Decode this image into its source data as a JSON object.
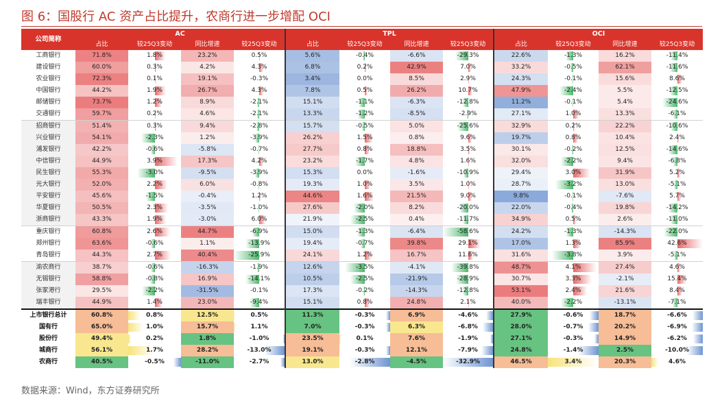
{
  "title": "图 6：国股行 AC 资产占比提升，农商行进一步增配 OCI",
  "source": "数据来源：Wind，东方证券研究所",
  "header": {
    "bank_col": "公司简称",
    "groups": [
      "AC",
      "TPL",
      "OCI"
    ],
    "subcols": [
      "占比",
      "较25Q3变动",
      "同比增速",
      "较25Q3变动"
    ]
  },
  "colors": {
    "red": "#e8696a",
    "blue": "#6f95d1",
    "green": "#4cb86b",
    "yellow": "#f7e37a",
    "orange": "#f4b183",
    "accent": "#d9342b"
  },
  "banks": [
    {
      "name": "工商银行",
      "v": [
        "71.8%",
        "1.8%",
        "23.2%",
        "0.5%",
        "5.6%",
        "-0.4%",
        "-6.6%",
        "-29.3%",
        "22.6%",
        "-1.3%",
        "16.2%",
        "-11.4%"
      ]
    },
    {
      "name": "建设银行",
      "v": [
        "60.0%",
        "0.3%",
        "4.2%",
        "4.3%",
        "6.8%",
        "0.2%",
        "42.9%",
        "7.0%",
        "33.2%",
        "-0.5%",
        "62.1%",
        "-11.6%"
      ]
    },
    {
      "name": "农业银行",
      "v": [
        "72.3%",
        "0.1%",
        "19.1%",
        "-0.3%",
        "3.4%",
        "0.0%",
        "8.5%",
        "2.9%",
        "24.3%",
        "-0.1%",
        "15.6%",
        "8.6%"
      ]
    },
    {
      "name": "中国银行",
      "v": [
        "44.2%",
        "1.9%",
        "26.7%",
        "4.3%",
        "7.8%",
        "0.5%",
        "26.2%",
        "10.7%",
        "47.9%",
        "-2.4%",
        "5.5%",
        "-12.5%"
      ]
    },
    {
      "name": "邮储银行",
      "v": [
        "73.7%",
        "1.2%",
        "8.9%",
        "-2.1%",
        "15.1%",
        "-1.1%",
        "-6.3%",
        "-12.8%",
        "11.2%",
        "-0.1%",
        "5.4%",
        "-24.6%"
      ]
    },
    {
      "name": "交通银行",
      "v": [
        "59.7%",
        "0.2%",
        "4.6%",
        "-2.1%",
        "13.3%",
        "-1.2%",
        "-8.5%",
        "-2.9%",
        "27.1%",
        "1.0%",
        "13.3%",
        "-6.1%"
      ]
    },
    {
      "name": "招商银行",
      "v": [
        "51.4%",
        "0.3%",
        "9.4%",
        "-2.8%",
        "15.7%",
        "-0.5%",
        "5.0%",
        "-25.6%",
        "32.9%",
        "0.2%",
        "22.2%",
        "-10.6%"
      ]
    },
    {
      "name": "兴业银行",
      "v": [
        "54.1%",
        "-2.3%",
        "1.2%",
        "-3.9%",
        "26.2%",
        "1.5%",
        "0.8%",
        "9.6%",
        "19.7%",
        "0.8%",
        "10.4%",
        "2.4%"
      ]
    },
    {
      "name": "浦发银行",
      "v": [
        "42.2%",
        "-0.6%",
        "-5.8%",
        "-0.7%",
        "27.7%",
        "0.8%",
        "18.8%",
        "3.5%",
        "30.1%",
        "-0.2%",
        "12.5%",
        "-14.6%"
      ]
    },
    {
      "name": "中信银行",
      "v": [
        "44.9%",
        "3.9%",
        "17.3%",
        "4.2%",
        "23.2%",
        "-1.7%",
        "4.8%",
        "1.6%",
        "32.0%",
        "-2.2%",
        "9.4%",
        "-6.8%"
      ]
    },
    {
      "name": "民生银行",
      "v": [
        "55.3%",
        "-3.0%",
        "-9.5%",
        "-3.9%",
        "15.3%",
        "0.0%",
        "-1.6%",
        "-10.9%",
        "29.4%",
        "3.0%",
        "31.9%",
        "5.2%"
      ]
    },
    {
      "name": "光大银行",
      "v": [
        "52.0%",
        "2.2%",
        "6.0%",
        "-0.8%",
        "19.3%",
        "1.0%",
        "3.5%",
        "1.0%",
        "28.7%",
        "-3.2%",
        "13.0%",
        "-5.1%"
      ]
    },
    {
      "name": "平安银行",
      "v": [
        "45.6%",
        "-1.5%",
        "-0.4%",
        "1.2%",
        "44.6%",
        "1.6%",
        "21.5%",
        "9.0%",
        "9.8%",
        "-0.1%",
        "-7.6%",
        "5.7%"
      ]
    },
    {
      "name": "华夏银行",
      "v": [
        "50.5%",
        "2.3%",
        "-3.5%",
        "-1.0%",
        "27.6%",
        "-2.0%",
        "8.2%",
        "-20.0%",
        "22.0%",
        "-0.4%",
        "19.8%",
        "-14.2%"
      ]
    },
    {
      "name": "浙商银行",
      "v": [
        "43.3%",
        "1.9%",
        "-3.0%",
        "6.0%",
        "21.9%",
        "-2.5%",
        "0.4%",
        "-11.7%",
        "34.9%",
        "0.5%",
        "2.6%",
        "-11.0%"
      ]
    },
    {
      "name": "重庆银行",
      "v": [
        "60.8%",
        "2.6%",
        "44.7%",
        "-6.9%",
        "15.0%",
        "-1.3%",
        "-6.4%",
        "-58.6%",
        "24.2%",
        "-1.3%",
        "-14.3%",
        "-22.0%"
      ]
    },
    {
      "name": "郑州银行",
      "v": [
        "63.6%",
        "-0.6%",
        "1.1%",
        "-13.9%",
        "19.4%",
        "-0.7%",
        "39.8%",
        "29.1%",
        "17.0%",
        "1.3%",
        "85.9%",
        "42.6%"
      ]
    },
    {
      "name": "青岛银行",
      "v": [
        "44.3%",
        "2.7%",
        "40.4%",
        "-25.9%",
        "24.1%",
        "1.2%",
        "16.7%",
        "11.6%",
        "31.6%",
        "-3.8%",
        "3.9%",
        "-5.1%"
      ]
    },
    {
      "name": "渝农商行",
      "v": [
        "38.7%",
        "-0.6%",
        "-16.3%",
        "-1.9%",
        "12.6%",
        "-3.5%",
        "-4.1%",
        "-39.8%",
        "48.7%",
        "4.1%",
        "27.4%",
        "4.6%"
      ]
    },
    {
      "name": "无锡银行",
      "v": [
        "58.8%",
        "-0.8%",
        "16.9%",
        "-14.1%",
        "10.5%",
        "-2.5%",
        "-21.9%",
        "-28.9%",
        "30.7%",
        "3.3%",
        "-2.1%",
        "15.4%"
      ]
    },
    {
      "name": "张家港行",
      "v": [
        "29.5%",
        "-2.2%",
        "-31.5%",
        "-0.1%",
        "17.3%",
        "-0.2%",
        "-14.3%",
        "-12.8%",
        "53.1%",
        "2.4%",
        "21.6%",
        "8.4%"
      ]
    },
    {
      "name": "瑞丰银行",
      "v": [
        "44.9%",
        "1.4%",
        "23.0%",
        "-9.4%",
        "15.1%",
        "0.8%",
        "24.8%",
        "2.1%",
        "40.0%",
        "-2.2%",
        "-13.1%",
        "-7.1%"
      ]
    }
  ],
  "summary": [
    {
      "name": "上市银行总计",
      "v": [
        "60.8%",
        "0.8%",
        "12.5%",
        "0.5%",
        "11.3%",
        "-0.3%",
        "6.9%",
        "-4.6%",
        "27.9%",
        "-0.6%",
        "18.7%",
        "-6.6%"
      ]
    },
    {
      "name": "国有行",
      "v": [
        "65.0%",
        "1.0%",
        "15.7%",
        "1.1%",
        "7.0%",
        "-0.3%",
        "6.3%",
        "-6.8%",
        "28.0%",
        "-0.7%",
        "20.2%",
        "-6.9%"
      ]
    },
    {
      "name": "股份行",
      "v": [
        "49.4%",
        "0.2%",
        "1.8%",
        "-1.0%",
        "23.5%",
        "0.1%",
        "7.6%",
        "-1.9%",
        "27.1%",
        "-0.3%",
        "14.9%",
        "-6.2%"
      ]
    },
    {
      "name": "城商行",
      "v": [
        "56.1%",
        "1.7%",
        "28.2%",
        "-13.0%",
        "19.1%",
        "-0.3%",
        "12.1%",
        "-7.9%",
        "24.8%",
        "-1.4%",
        "2.5%",
        "-10.0%"
      ]
    },
    {
      "name": "农商行",
      "v": [
        "40.5%",
        "-0.5%",
        "-11.0%",
        "-2.7%",
        "13.0%",
        "-2.8%",
        "-4.5%",
        "-32.9%",
        "46.5%",
        "3.4%",
        "20.3%",
        "4.6%"
      ]
    }
  ]
}
